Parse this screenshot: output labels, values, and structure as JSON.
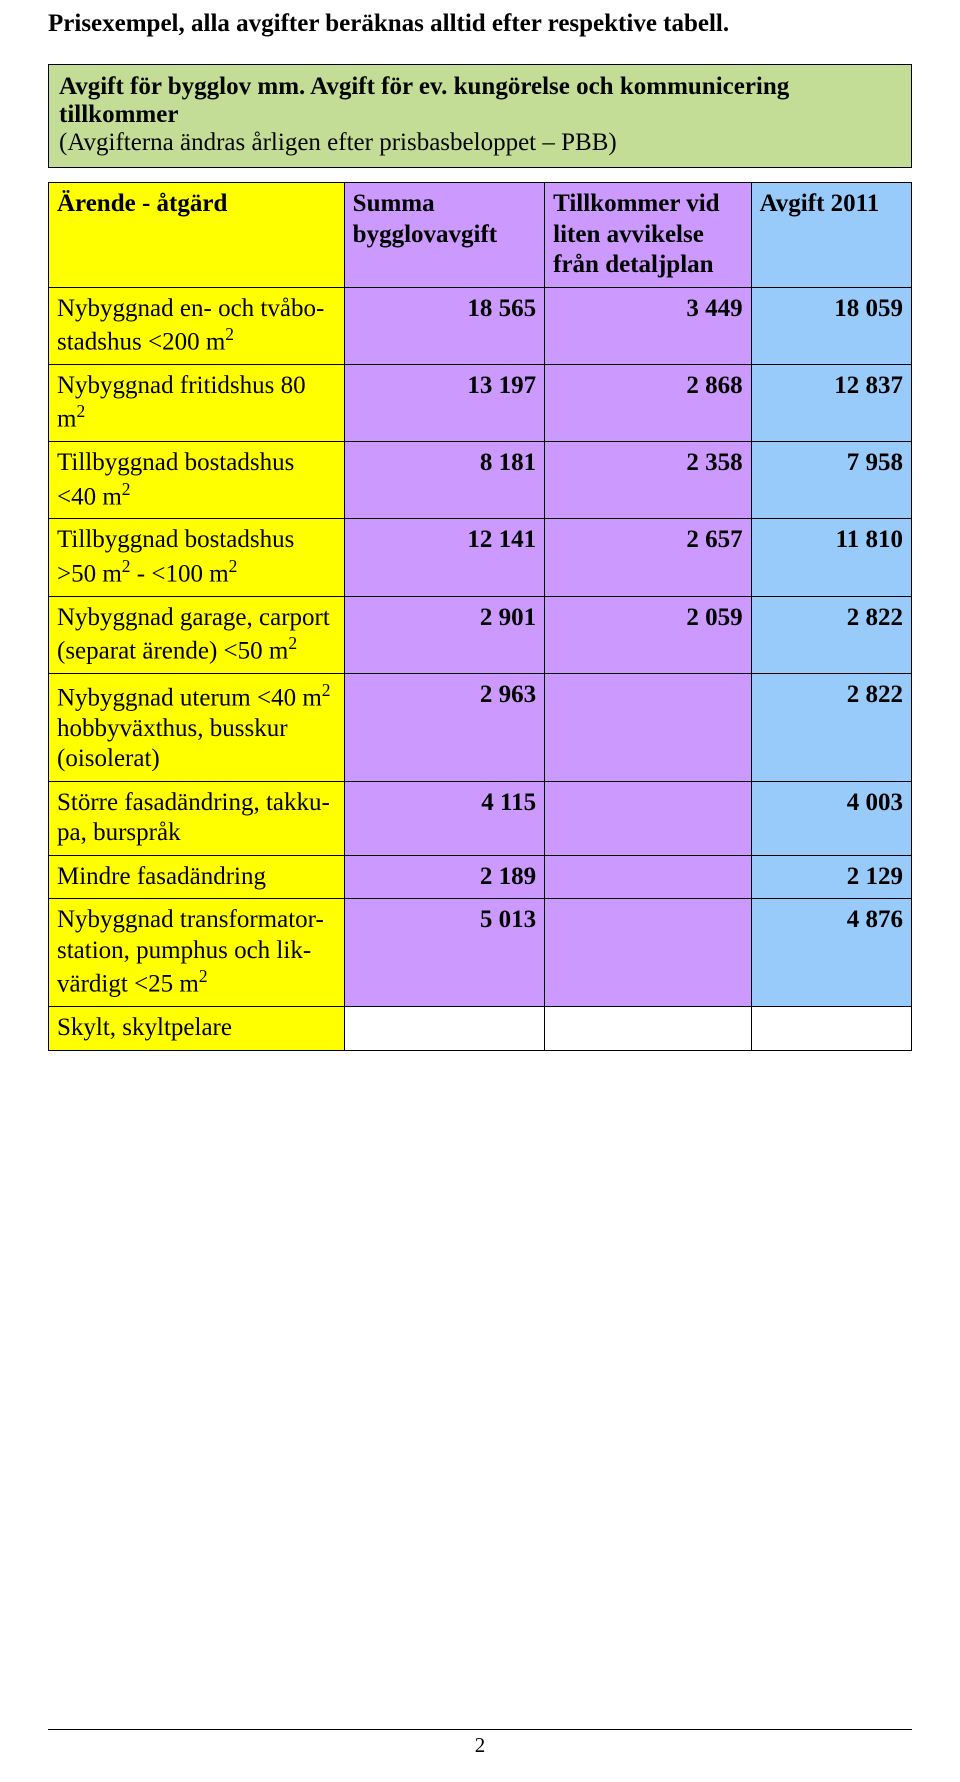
{
  "colors": {
    "yellow": "#ffff00",
    "greenBox": "#c4dd96",
    "purple": "#cc99ff",
    "blue": "#98cbfa",
    "text": "#000000"
  },
  "heading": "Prisexempel, alla avgifter beräknas alltid efter respektive tabell.",
  "box": {
    "line1": "Avgift för bygglov mm. Avgift för ev. kungörelse och kommunicering tillkommer",
    "line2": "(Avgifterna ändras årligen efter prisbasbeloppet – PBB)"
  },
  "table": {
    "headers": {
      "c0": "Ärende - åtgärd",
      "c1": "Summa bygglovavgift",
      "c2": "Tillkommer vid liten avvikelse från detaljplan",
      "c3": "Avgift 2011"
    },
    "rows": [
      {
        "label_html": "Nybyggnad en- och tvåbo-stadshus <200 m<span class=\"sup\">2</span>",
        "sum": "18 565",
        "til": "3 449",
        "avg": "18 059"
      },
      {
        "label_html": "Nybyggnad fritidshus 80 m<span class=\"sup\">2</span>",
        "sum": "13 197",
        "til": "2 868",
        "avg": "12 837"
      },
      {
        "label_html": "Tillbyggnad bostadshus <40 m<span class=\"sup\">2</span>",
        "sum": "8 181",
        "til": "2 358",
        "avg": "7 958"
      },
      {
        "label_html": "Tillbyggnad bostadshus >50 m<span class=\"sup\">2</span> - <100 m<span class=\"sup\">2</span>",
        "sum": "12 141",
        "til": "2 657",
        "avg": "11 810"
      },
      {
        "label_html": "Nybyggnad garage, carport (separat ärende) <50 m<span class=\"sup\">2</span>",
        "sum": "2 901",
        "til": "2 059",
        "avg": "2 822"
      },
      {
        "label_html": "Nybyggnad uterum <40 m<span class=\"sup\">2</span> hobbyväxthus, busskur (oisolerat)",
        "sum": "2 963",
        "til": "",
        "avg": "2 822"
      },
      {
        "label_html": "Större fasadändring, takku-pa, burspråk",
        "sum": "4 115",
        "til": "",
        "avg": "4 003"
      },
      {
        "label_html": "Mindre fasadändring",
        "sum": "2 189",
        "til": "",
        "avg": "2 129"
      },
      {
        "label_html": "Nybyggnad transformator-station, pumphus och lik-värdigt <25 m<span class=\"sup\">2</span>",
        "sum": "5 013",
        "til": "",
        "avg": "4 876"
      },
      {
        "label_html": "Skylt, skyltpelare",
        "sum": "",
        "til": "",
        "avg": "",
        "whiteTail": true
      }
    ]
  },
  "pageNumber": "2"
}
